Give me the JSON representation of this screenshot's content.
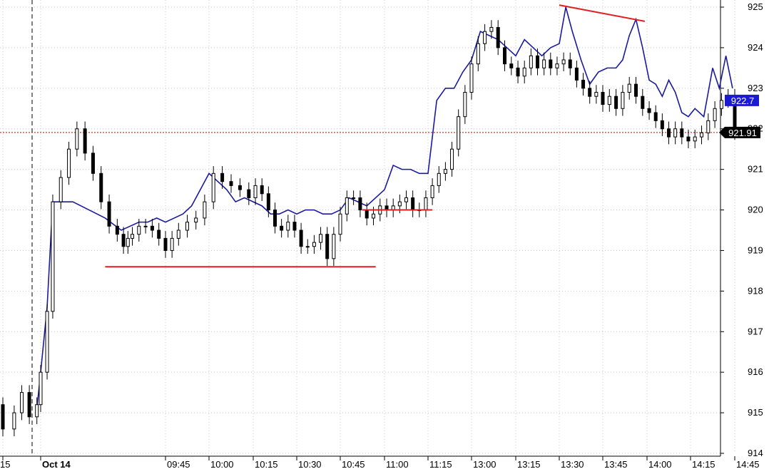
{
  "chart_data": {
    "type": "line",
    "title": "",
    "xlabel": "",
    "ylabel": "",
    "ylim": [
      914,
      925
    ],
    "y_ticks": [
      "914",
      "915",
      "916",
      "917",
      "918",
      "919",
      "920",
      "921",
      "922",
      "923",
      "924",
      "925"
    ],
    "x_tick_labels": [
      {
        "t": "15",
        "x": 0
      },
      {
        "t": "Oct 14",
        "x": 1,
        "bold": true
      },
      {
        "t": "09:45",
        "x": 3
      },
      {
        "t": "10:00",
        "x": 4
      },
      {
        "t": "10:15",
        "x": 5
      },
      {
        "t": "10:30",
        "x": 6
      },
      {
        "t": "10:45",
        "x": 7
      },
      {
        "t": "11:00",
        "x": 8
      },
      {
        "t": "11:15",
        "x": 9
      },
      {
        "t": "13:00",
        "x": 10
      },
      {
        "t": "13:15",
        "x": 11
      },
      {
        "t": "13:30",
        "x": 12
      },
      {
        "t": "13:45",
        "x": 13
      },
      {
        "t": "14:00",
        "x": 14
      },
      {
        "t": "14:15",
        "x": 15
      },
      {
        "t": "14:45",
        "x": 16
      }
    ],
    "grid": true,
    "series": [
      {
        "type": "candlestick",
        "color": "#000000",
        "points": [
          {
            "x": -0.7,
            "y": 915.0
          },
          {
            "x": -0.5,
            "y": 914.5
          },
          {
            "x": -0.3,
            "y": 915.2
          },
          {
            "x": 0.0,
            "y": 914.6
          },
          {
            "x": 0.3,
            "y": 915.0
          },
          {
            "x": 0.5,
            "y": 915.5
          },
          {
            "x": 0.7,
            "y": 914.9
          },
          {
            "x": 0.9,
            "y": 915.2
          },
          {
            "x": 1.0,
            "y": 916.0
          },
          {
            "x": 1.08,
            "y": 917.5
          },
          {
            "x": 1.15,
            "y": 920.2
          },
          {
            "x": 1.25,
            "y": 920.8
          },
          {
            "x": 1.35,
            "y": 921.5
          },
          {
            "x": 1.45,
            "y": 922.0
          },
          {
            "x": 1.55,
            "y": 921.4
          },
          {
            "x": 1.65,
            "y": 920.9
          },
          {
            "x": 1.75,
            "y": 920.2
          },
          {
            "x": 1.85,
            "y": 919.6
          },
          {
            "x": 1.95,
            "y": 919.4
          },
          {
            "x": 2.05,
            "y": 919.1
          },
          {
            "x": 2.15,
            "y": 919.3
          },
          {
            "x": 2.25,
            "y": 919.4
          },
          {
            "x": 2.4,
            "y": 919.6
          },
          {
            "x": 2.55,
            "y": 919.6
          },
          {
            "x": 2.7,
            "y": 919.5
          },
          {
            "x": 2.85,
            "y": 919.3
          },
          {
            "x": 3.0,
            "y": 919.0
          },
          {
            "x": 3.15,
            "y": 919.3
          },
          {
            "x": 3.3,
            "y": 919.5
          },
          {
            "x": 3.5,
            "y": 919.7
          },
          {
            "x": 3.7,
            "y": 919.8
          },
          {
            "x": 3.9,
            "y": 920.2
          },
          {
            "x": 4.1,
            "y": 920.9
          },
          {
            "x": 4.3,
            "y": 920.7
          },
          {
            "x": 4.5,
            "y": 920.6
          },
          {
            "x": 4.7,
            "y": 920.5
          },
          {
            "x": 4.9,
            "y": 920.3
          },
          {
            "x": 5.05,
            "y": 920.6
          },
          {
            "x": 5.2,
            "y": 920.4
          },
          {
            "x": 5.35,
            "y": 920.0
          },
          {
            "x": 5.5,
            "y": 919.6
          },
          {
            "x": 5.65,
            "y": 919.5
          },
          {
            "x": 5.8,
            "y": 919.7
          },
          {
            "x": 5.95,
            "y": 919.5
          },
          {
            "x": 6.1,
            "y": 919.1
          },
          {
            "x": 6.25,
            "y": 919.1
          },
          {
            "x": 6.4,
            "y": 919.2
          },
          {
            "x": 6.55,
            "y": 919.4
          },
          {
            "x": 6.7,
            "y": 918.8
          },
          {
            "x": 6.85,
            "y": 919.4
          },
          {
            "x": 7.0,
            "y": 919.9
          },
          {
            "x": 7.15,
            "y": 920.3
          },
          {
            "x": 7.3,
            "y": 920.3
          },
          {
            "x": 7.45,
            "y": 920.0
          },
          {
            "x": 7.6,
            "y": 919.8
          },
          {
            "x": 7.75,
            "y": 919.9
          },
          {
            "x": 7.9,
            "y": 920.1
          },
          {
            "x": 8.05,
            "y": 920.0
          },
          {
            "x": 8.2,
            "y": 920.1
          },
          {
            "x": 8.35,
            "y": 920.2
          },
          {
            "x": 8.5,
            "y": 920.3
          },
          {
            "x": 8.65,
            "y": 920.0
          },
          {
            "x": 8.8,
            "y": 920.0
          },
          {
            "x": 8.95,
            "y": 920.3
          },
          {
            "x": 9.1,
            "y": 920.6
          },
          {
            "x": 9.25,
            "y": 920.9
          },
          {
            "x": 9.4,
            "y": 921.0
          },
          {
            "x": 9.55,
            "y": 921.5
          },
          {
            "x": 9.7,
            "y": 922.3
          },
          {
            "x": 9.85,
            "y": 922.9
          },
          {
            "x": 10.0,
            "y": 923.6
          },
          {
            "x": 10.15,
            "y": 924.1
          },
          {
            "x": 10.3,
            "y": 924.4
          },
          {
            "x": 10.45,
            "y": 924.5
          },
          {
            "x": 10.6,
            "y": 924.0
          },
          {
            "x": 10.75,
            "y": 923.6
          },
          {
            "x": 10.9,
            "y": 923.5
          },
          {
            "x": 11.05,
            "y": 923.3
          },
          {
            "x": 11.2,
            "y": 923.5
          },
          {
            "x": 11.35,
            "y": 923.8
          },
          {
            "x": 11.5,
            "y": 923.5
          },
          {
            "x": 11.65,
            "y": 923.7
          },
          {
            "x": 11.8,
            "y": 923.5
          },
          {
            "x": 11.95,
            "y": 923.6
          },
          {
            "x": 12.1,
            "y": 923.7
          },
          {
            "x": 12.25,
            "y": 923.5
          },
          {
            "x": 12.4,
            "y": 923.2
          },
          {
            "x": 12.55,
            "y": 923.0
          },
          {
            "x": 12.7,
            "y": 922.8
          },
          {
            "x": 12.85,
            "y": 922.9
          },
          {
            "x": 13.0,
            "y": 922.6
          },
          {
            "x": 13.15,
            "y": 922.8
          },
          {
            "x": 13.3,
            "y": 922.5
          },
          {
            "x": 13.45,
            "y": 922.9
          },
          {
            "x": 13.6,
            "y": 923.1
          },
          {
            "x": 13.75,
            "y": 922.8
          },
          {
            "x": 13.9,
            "y": 922.5
          },
          {
            "x": 14.05,
            "y": 922.4
          },
          {
            "x": 14.2,
            "y": 922.2
          },
          {
            "x": 14.35,
            "y": 922.0
          },
          {
            "x": 14.5,
            "y": 921.8
          },
          {
            "x": 14.65,
            "y": 922.0
          },
          {
            "x": 14.8,
            "y": 921.8
          },
          {
            "x": 14.95,
            "y": 921.7
          },
          {
            "x": 15.1,
            "y": 921.8
          },
          {
            "x": 15.25,
            "y": 921.9
          },
          {
            "x": 15.4,
            "y": 922.2
          },
          {
            "x": 15.55,
            "y": 922.5
          },
          {
            "x": 15.7,
            "y": 922.7
          },
          {
            "x": 15.85,
            "y": 922.8
          },
          {
            "x": 16.0,
            "y": 921.91
          }
        ]
      },
      {
        "type": "line",
        "color": "#1a1aa0",
        "points": [
          {
            "x": 0.9,
            "y": 915.1
          },
          {
            "x": 1.0,
            "y": 916.0
          },
          {
            "x": 1.08,
            "y": 917.6
          },
          {
            "x": 1.15,
            "y": 920.2
          },
          {
            "x": 1.4,
            "y": 920.2
          },
          {
            "x": 1.6,
            "y": 920.0
          },
          {
            "x": 1.8,
            "y": 919.8
          },
          {
            "x": 2.0,
            "y": 919.5
          },
          {
            "x": 2.2,
            "y": 919.6
          },
          {
            "x": 2.4,
            "y": 919.7
          },
          {
            "x": 2.6,
            "y": 919.7
          },
          {
            "x": 2.8,
            "y": 919.8
          },
          {
            "x": 3.0,
            "y": 919.7
          },
          {
            "x": 3.2,
            "y": 919.8
          },
          {
            "x": 3.4,
            "y": 919.9
          },
          {
            "x": 3.6,
            "y": 920.1
          },
          {
            "x": 3.8,
            "y": 920.5
          },
          {
            "x": 4.0,
            "y": 920.9
          },
          {
            "x": 4.2,
            "y": 920.7
          },
          {
            "x": 4.4,
            "y": 920.5
          },
          {
            "x": 4.6,
            "y": 920.2
          },
          {
            "x": 4.8,
            "y": 920.3
          },
          {
            "x": 5.0,
            "y": 920.2
          },
          {
            "x": 5.2,
            "y": 920.1
          },
          {
            "x": 5.4,
            "y": 919.9
          },
          {
            "x": 5.6,
            "y": 919.9
          },
          {
            "x": 5.8,
            "y": 920.0
          },
          {
            "x": 6.0,
            "y": 919.9
          },
          {
            "x": 6.2,
            "y": 920.0
          },
          {
            "x": 6.4,
            "y": 920.0
          },
          {
            "x": 6.6,
            "y": 919.9
          },
          {
            "x": 6.8,
            "y": 919.9
          },
          {
            "x": 7.0,
            "y": 920.0
          },
          {
            "x": 7.2,
            "y": 920.3
          },
          {
            "x": 7.4,
            "y": 920.2
          },
          {
            "x": 7.6,
            "y": 920.1
          },
          {
            "x": 7.8,
            "y": 920.3
          },
          {
            "x": 8.0,
            "y": 920.5
          },
          {
            "x": 8.2,
            "y": 921.1
          },
          {
            "x": 8.4,
            "y": 921.0
          },
          {
            "x": 8.6,
            "y": 921.0
          },
          {
            "x": 8.8,
            "y": 920.9
          },
          {
            "x": 9.0,
            "y": 920.9
          },
          {
            "x": 9.2,
            "y": 922.7
          },
          {
            "x": 9.4,
            "y": 923.0
          },
          {
            "x": 9.6,
            "y": 923.0
          },
          {
            "x": 9.8,
            "y": 923.4
          },
          {
            "x": 10.0,
            "y": 923.7
          },
          {
            "x": 10.2,
            "y": 924.4
          },
          {
            "x": 10.4,
            "y": 924.3
          },
          {
            "x": 10.6,
            "y": 924.2
          },
          {
            "x": 10.8,
            "y": 924.0
          },
          {
            "x": 11.0,
            "y": 923.8
          },
          {
            "x": 11.2,
            "y": 924.2
          },
          {
            "x": 11.4,
            "y": 924.0
          },
          {
            "x": 11.6,
            "y": 923.8
          },
          {
            "x": 11.8,
            "y": 924.0
          },
          {
            "x": 12.0,
            "y": 924.1
          },
          {
            "x": 12.15,
            "y": 925.0
          },
          {
            "x": 12.3,
            "y": 924.4
          },
          {
            "x": 12.5,
            "y": 923.7
          },
          {
            "x": 12.7,
            "y": 923.1
          },
          {
            "x": 12.9,
            "y": 923.4
          },
          {
            "x": 13.1,
            "y": 923.5
          },
          {
            "x": 13.3,
            "y": 923.5
          },
          {
            "x": 13.45,
            "y": 923.7
          },
          {
            "x": 13.6,
            "y": 924.3
          },
          {
            "x": 13.75,
            "y": 924.7
          },
          {
            "x": 13.9,
            "y": 924.0
          },
          {
            "x": 14.05,
            "y": 923.2
          },
          {
            "x": 14.2,
            "y": 923.1
          },
          {
            "x": 14.35,
            "y": 922.8
          },
          {
            "x": 14.5,
            "y": 923.2
          },
          {
            "x": 14.65,
            "y": 922.9
          },
          {
            "x": 14.8,
            "y": 922.4
          },
          {
            "x": 14.95,
            "y": 922.3
          },
          {
            "x": 15.1,
            "y": 922.5
          },
          {
            "x": 15.3,
            "y": 922.3
          },
          {
            "x": 15.5,
            "y": 923.5
          },
          {
            "x": 15.65,
            "y": 923.0
          },
          {
            "x": 15.8,
            "y": 923.8
          },
          {
            "x": 15.95,
            "y": 923.0
          }
        ]
      }
    ],
    "trend_lines": [
      {
        "color": "#e02020",
        "x1": 1.8,
        "y1": 918.6,
        "x2": 7.8,
        "y2": 918.6
      },
      {
        "color": "#e02020",
        "x1": 7.5,
        "y1": 920.0,
        "x2": 9.1,
        "y2": 920.0
      },
      {
        "color": "#e02020",
        "x1": 12.0,
        "y1": 925.05,
        "x2": 13.95,
        "y2": 924.65
      }
    ],
    "reference_line": {
      "y": 921.91,
      "color": "#cc0000"
    },
    "session_marker_x": 1.0,
    "price_labels": [
      {
        "text": "922.7",
        "y": 922.7,
        "bg": "#1a1ad0",
        "fg": "#ffffff"
      },
      {
        "text": "921.91",
        "y": 921.91,
        "bg": "#000000",
        "fg": "#ffffff"
      }
    ]
  }
}
